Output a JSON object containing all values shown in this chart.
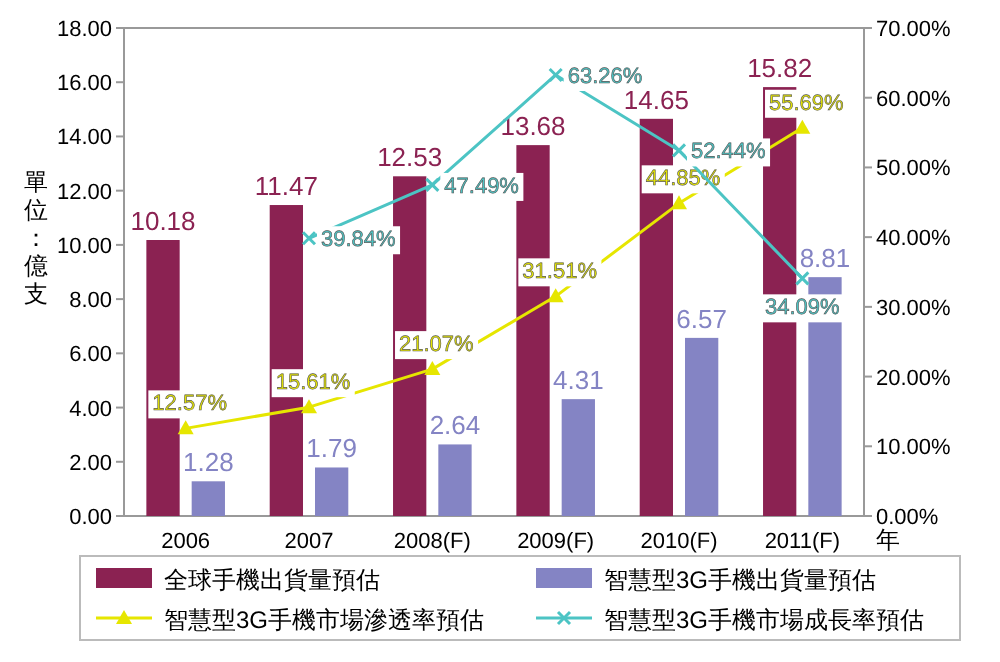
{
  "chart_data": {
    "type": "bar",
    "ylabel": "單位：億支",
    "xlabel": "年",
    "categories": [
      "2006",
      "2007",
      "2008(F)",
      "2009(F)",
      "2010(F)",
      "2011(F)"
    ],
    "series": [
      {
        "name": "全球手機出貨量預估",
        "color": "#8b2252",
        "values": [
          10.18,
          11.47,
          12.53,
          13.68,
          14.65,
          15.82
        ]
      },
      {
        "name": "智慧型3G手機出貨量預估",
        "color": "#8484c4",
        "values": [
          1.28,
          1.79,
          2.64,
          4.31,
          6.57,
          8.81
        ]
      },
      {
        "name": "智慧型3G手機市場滲透率預估",
        "type": "line",
        "axis": "y2",
        "color": "#e6e600",
        "marker": "triangle",
        "values": [
          12.57,
          15.61,
          21.07,
          31.51,
          44.85,
          55.69
        ],
        "value_labels": [
          "12.57%",
          "15.61%",
          "21.07%",
          "31.51%",
          "44.85%",
          "55.69%"
        ]
      },
      {
        "name": "智慧型3G手機市場成長率預估",
        "type": "line",
        "axis": "y2",
        "color": "#4cc4c4",
        "marker": "cross",
        "values": [
          null,
          39.84,
          47.49,
          63.26,
          52.44,
          34.09
        ],
        "value_labels": [
          null,
          "39.84%",
          "47.49%",
          "63.26%",
          "52.44%",
          "34.09%"
        ]
      }
    ],
    "ylim": [
      0,
      18
    ],
    "yticks": [
      {
        "value": 0,
        "label": "0.00"
      },
      {
        "value": 2,
        "label": "2.00"
      },
      {
        "value": 4,
        "label": "4.00"
      },
      {
        "value": 6,
        "label": "6.00"
      },
      {
        "value": 8,
        "label": "8.00"
      },
      {
        "value": 10,
        "label": "10.00"
      },
      {
        "value": 12,
        "label": "12.00"
      },
      {
        "value": 14,
        "label": "14.00"
      },
      {
        "value": 16,
        "label": "16.00"
      },
      {
        "value": 18,
        "label": "18.00"
      }
    ],
    "y2lim": [
      0,
      70
    ],
    "y2ticks": [
      {
        "value": 0,
        "label": "0.00%"
      },
      {
        "value": 10,
        "label": "10.00%"
      },
      {
        "value": 20,
        "label": "20.00%"
      },
      {
        "value": 30,
        "label": "30.00%"
      },
      {
        "value": 40,
        "label": "40.00%"
      },
      {
        "value": 50,
        "label": "50.00%"
      },
      {
        "value": 60,
        "label": "60.00%"
      },
      {
        "value": 70,
        "label": "70.00%"
      }
    ],
    "data_labels": true,
    "legend": "bottom",
    "grid": false
  }
}
